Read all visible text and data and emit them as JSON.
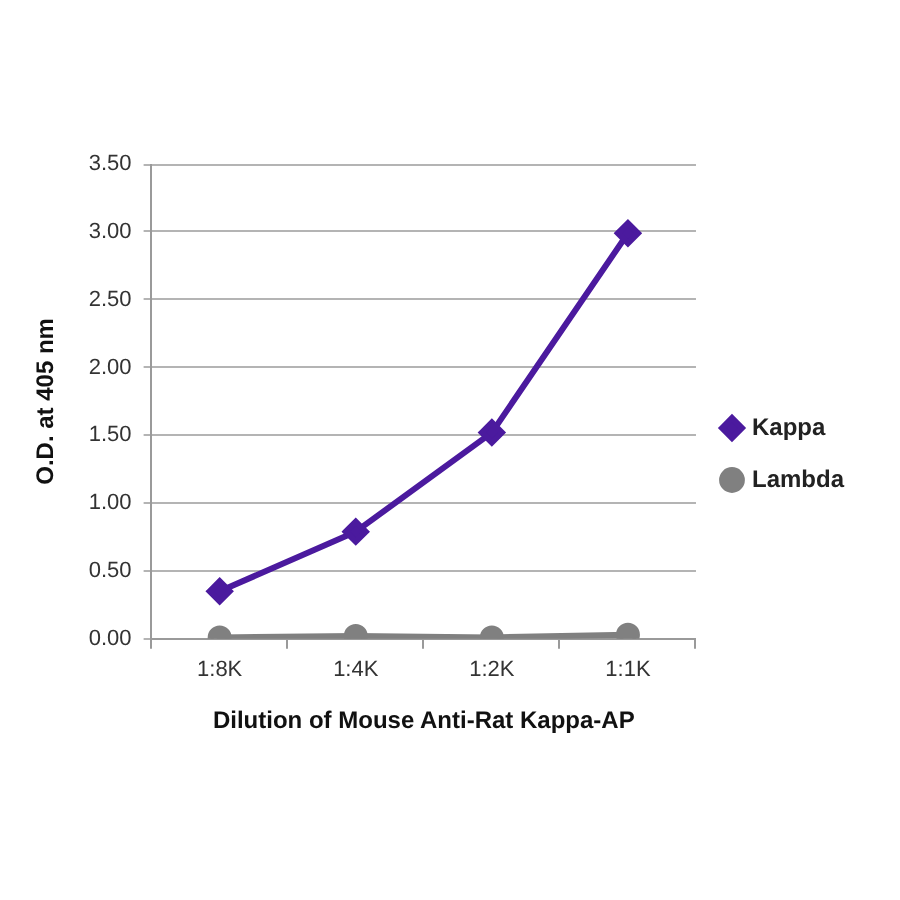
{
  "chart_data": {
    "type": "line",
    "xlabel": "Dilution of Mouse Anti-Rat Kappa-AP",
    "ylabel": "O.D. at 405 nm",
    "categories": [
      "1:8K",
      "1:4K",
      "1:2K",
      "1:1K"
    ],
    "series": [
      {
        "name": "Kappa",
        "color": "#4b1a9e",
        "values": [
          0.35,
          0.79,
          1.52,
          2.99
        ],
        "marker": "diamond"
      },
      {
        "name": "Lambda",
        "color": "#808080",
        "values": [
          0.01,
          0.02,
          0.01,
          0.03
        ],
        "marker": "circle"
      }
    ],
    "ylim": [
      0,
      3.5
    ],
    "yticks": [
      {
        "value": 0,
        "label": "0.00"
      },
      {
        "value": 0.5,
        "label": "0.50"
      },
      {
        "value": 1,
        "label": "1.00"
      },
      {
        "value": 1.5,
        "label": "1.50"
      },
      {
        "value": 2,
        "label": "2.00"
      },
      {
        "value": 2.5,
        "label": "2.50"
      },
      {
        "value": 3,
        "label": "3.00"
      },
      {
        "value": 3.5,
        "label": "3.50"
      }
    ],
    "grid": "y",
    "legend": "right",
    "line_style": "solid"
  }
}
